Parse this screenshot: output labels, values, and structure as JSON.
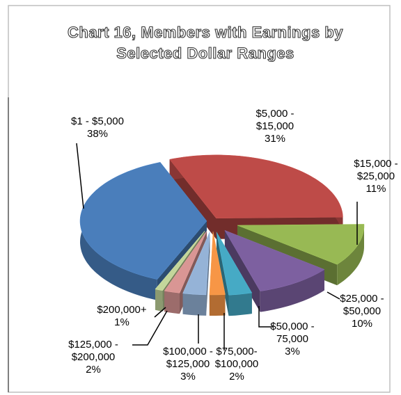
{
  "chart_data": {
    "type": "pie",
    "title": "Chart 16, Members with Earnings by Selected Dollar Ranges",
    "categories": [
      "$1 - $5,000",
      "$5,000 - $15,000",
      "$15,000 - $25,000",
      "$25,000 - $50,000",
      "$50,000 - 75,000",
      "$75,000- $100,000",
      "$100,000 - $125,000",
      "$125,000 - $200,000",
      "$200,000+"
    ],
    "values": [
      38,
      31,
      11,
      10,
      3,
      2,
      3,
      2,
      1
    ],
    "value_labels": [
      "38%",
      "31%",
      "11%",
      "10%",
      "3%",
      "2%",
      "3%",
      "2%",
      "1%"
    ],
    "colors": [
      "#4a7ebb",
      "#be4b48",
      "#98b954",
      "#7d60a0",
      "#46aac5",
      "#f79646",
      "#95b3d7",
      "#d99694",
      "#c3d69b"
    ]
  }
}
